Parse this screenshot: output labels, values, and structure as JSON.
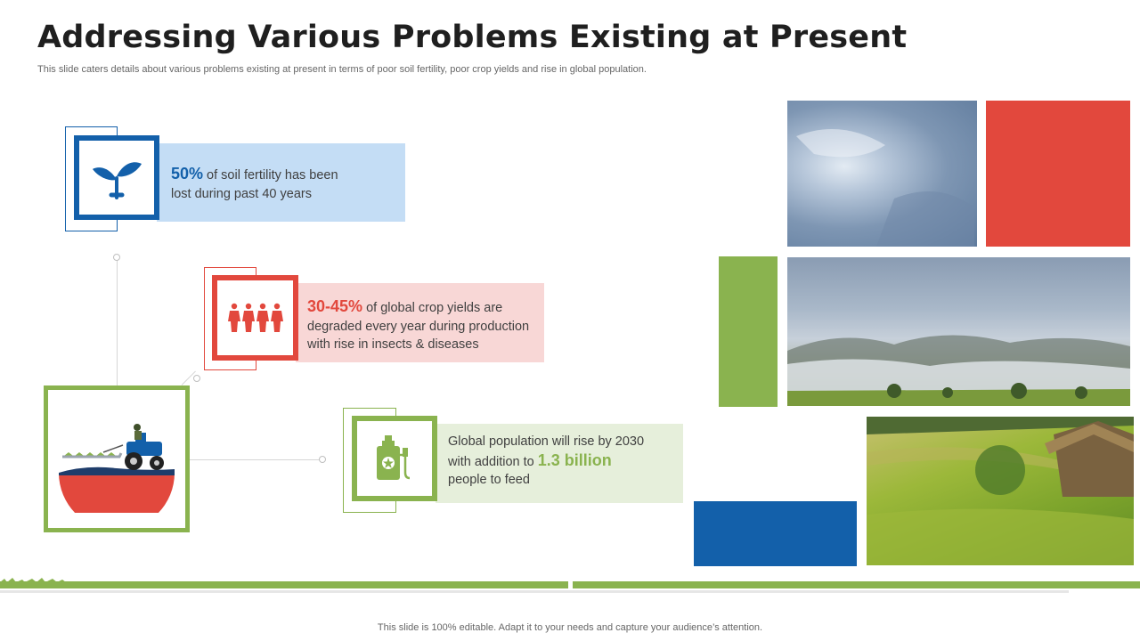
{
  "header": {
    "title": "Addressing Various Problems Existing at Present",
    "subtitle": "This slide caters details about various problems existing at present in terms of poor soil fertility, poor crop yields and rise in global population."
  },
  "problems": [
    {
      "highlight": "50%",
      "line1": " of soil fertility has been",
      "line2": "lost during  past 40 years",
      "icon": "sprout-icon",
      "color": "#1360aa",
      "fill": "#c4ddf5"
    },
    {
      "highlight": "30-45%",
      "line1": " of global crop yields are",
      "line2": "degraded every year during production",
      "line3": "with rise in insects & diseases",
      "icon": "people-icon",
      "color": "#e2483d",
      "fill": "#f8d7d6"
    },
    {
      "line1": "Global population will rise by 2030",
      "line2_prefix": "with addition to ",
      "highlight": "1.3 billion",
      "line3": "people to feed",
      "icon": "spray-bottle-icon",
      "color": "#8ab34f",
      "fill": "#e6efdb"
    }
  ],
  "illustration": {
    "icon": "tractor-field-icon"
  },
  "footer": "This slide is 100% editable. Adapt it to your needs and capture your audience’s attention.",
  "colors": {
    "blue": "#1360aa",
    "red": "#e2483d",
    "green": "#8ab34f"
  }
}
